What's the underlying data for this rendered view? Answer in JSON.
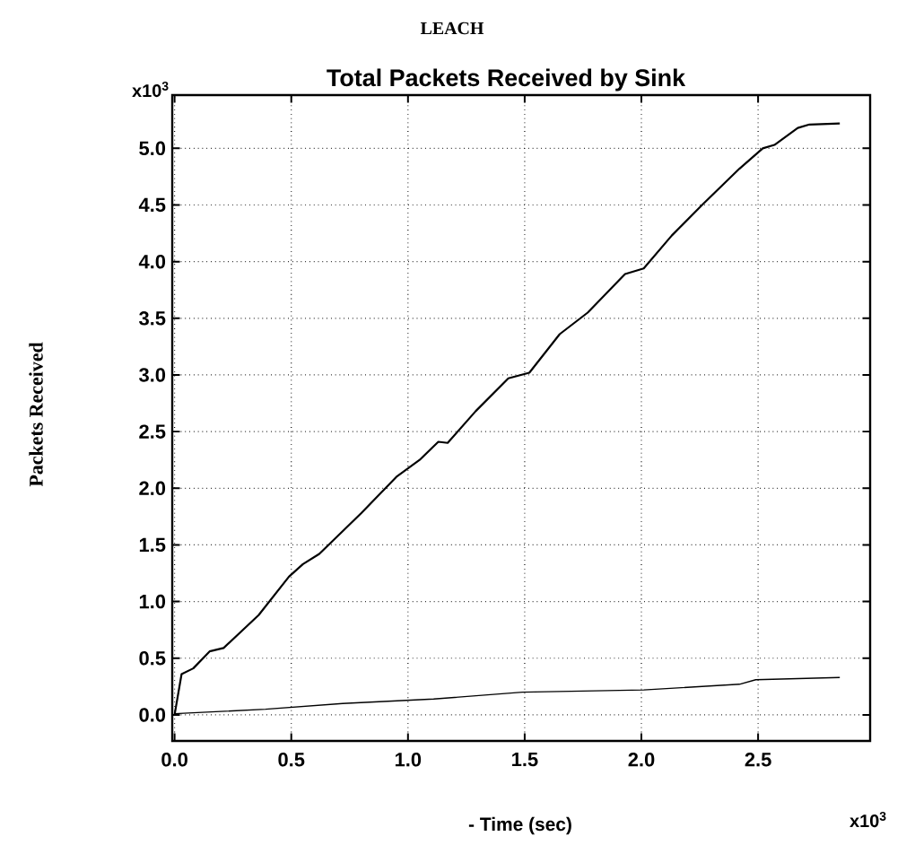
{
  "chart_data": {
    "type": "line",
    "title": "LEACH",
    "subtitle": "Total Packets Received by Sink",
    "xlabel": "- Time (sec)",
    "ylabel": "Packets Received",
    "annotations": [
      "x10$^{3}$",
      "x10$^{3}$"
    ],
    "xlim": [
      -0.01,
      2.98
    ],
    "ylim": [
      -0.23,
      5.47
    ],
    "xticks": [
      {
        "value": 0,
        "label": "0.0"
      },
      {
        "value": 0.5,
        "label": "0.5"
      },
      {
        "value": 1,
        "label": "1.0"
      },
      {
        "value": 1.5,
        "label": "1.5"
      },
      {
        "value": 2,
        "label": "2.0"
      },
      {
        "value": 2.5,
        "label": "2.5"
      }
    ],
    "yticks": [
      {
        "value": 0,
        "label": "0.0"
      },
      {
        "value": 0.5,
        "label": "0.5"
      },
      {
        "value": 1,
        "label": "1.0"
      },
      {
        "value": 1.5,
        "label": "1.5"
      },
      {
        "value": 2,
        "label": "2.0"
      },
      {
        "value": 2.5,
        "label": "2.5"
      },
      {
        "value": 3,
        "label": "3.0"
      },
      {
        "value": 3.5,
        "label": "3.5"
      },
      {
        "value": 4,
        "label": "4.0"
      },
      {
        "value": 4.5,
        "label": "4.5"
      },
      {
        "value": 5,
        "label": "5.0"
      }
    ],
    "grid": true,
    "line_style": "solid",
    "marker": "none",
    "series": [
      {
        "color": "#000000",
        "x": [
          0,
          0.03,
          0.08,
          0.15,
          0.21,
          0.36,
          0.49,
          0.55,
          0.62,
          0.8,
          0.95,
          1.05,
          1.13,
          1.17,
          1.29,
          1.43,
          1.52,
          1.65,
          1.77,
          1.93,
          2.01,
          2.13,
          2.26,
          2.42,
          2.52,
          2.57,
          2.67,
          2.72,
          2.85
        ],
        "values": [
          0,
          0.36,
          0.41,
          0.56,
          0.59,
          0.88,
          1.22,
          1.33,
          1.42,
          1.78,
          2.1,
          2.25,
          2.41,
          2.4,
          2.68,
          2.97,
          3.02,
          3.36,
          3.55,
          3.89,
          3.94,
          4.23,
          4.5,
          4.82,
          5.0,
          5.03,
          5.18,
          5.21,
          5.22
        ]
      },
      {
        "color": "#000000",
        "x": [
          0,
          0.39,
          0.72,
          1.11,
          1.49,
          2.01,
          2.42,
          2.49,
          2.85
        ],
        "values": [
          0.01,
          0.05,
          0.1,
          0.14,
          0.2,
          0.22,
          0.27,
          0.31,
          0.33
        ]
      }
    ]
  }
}
